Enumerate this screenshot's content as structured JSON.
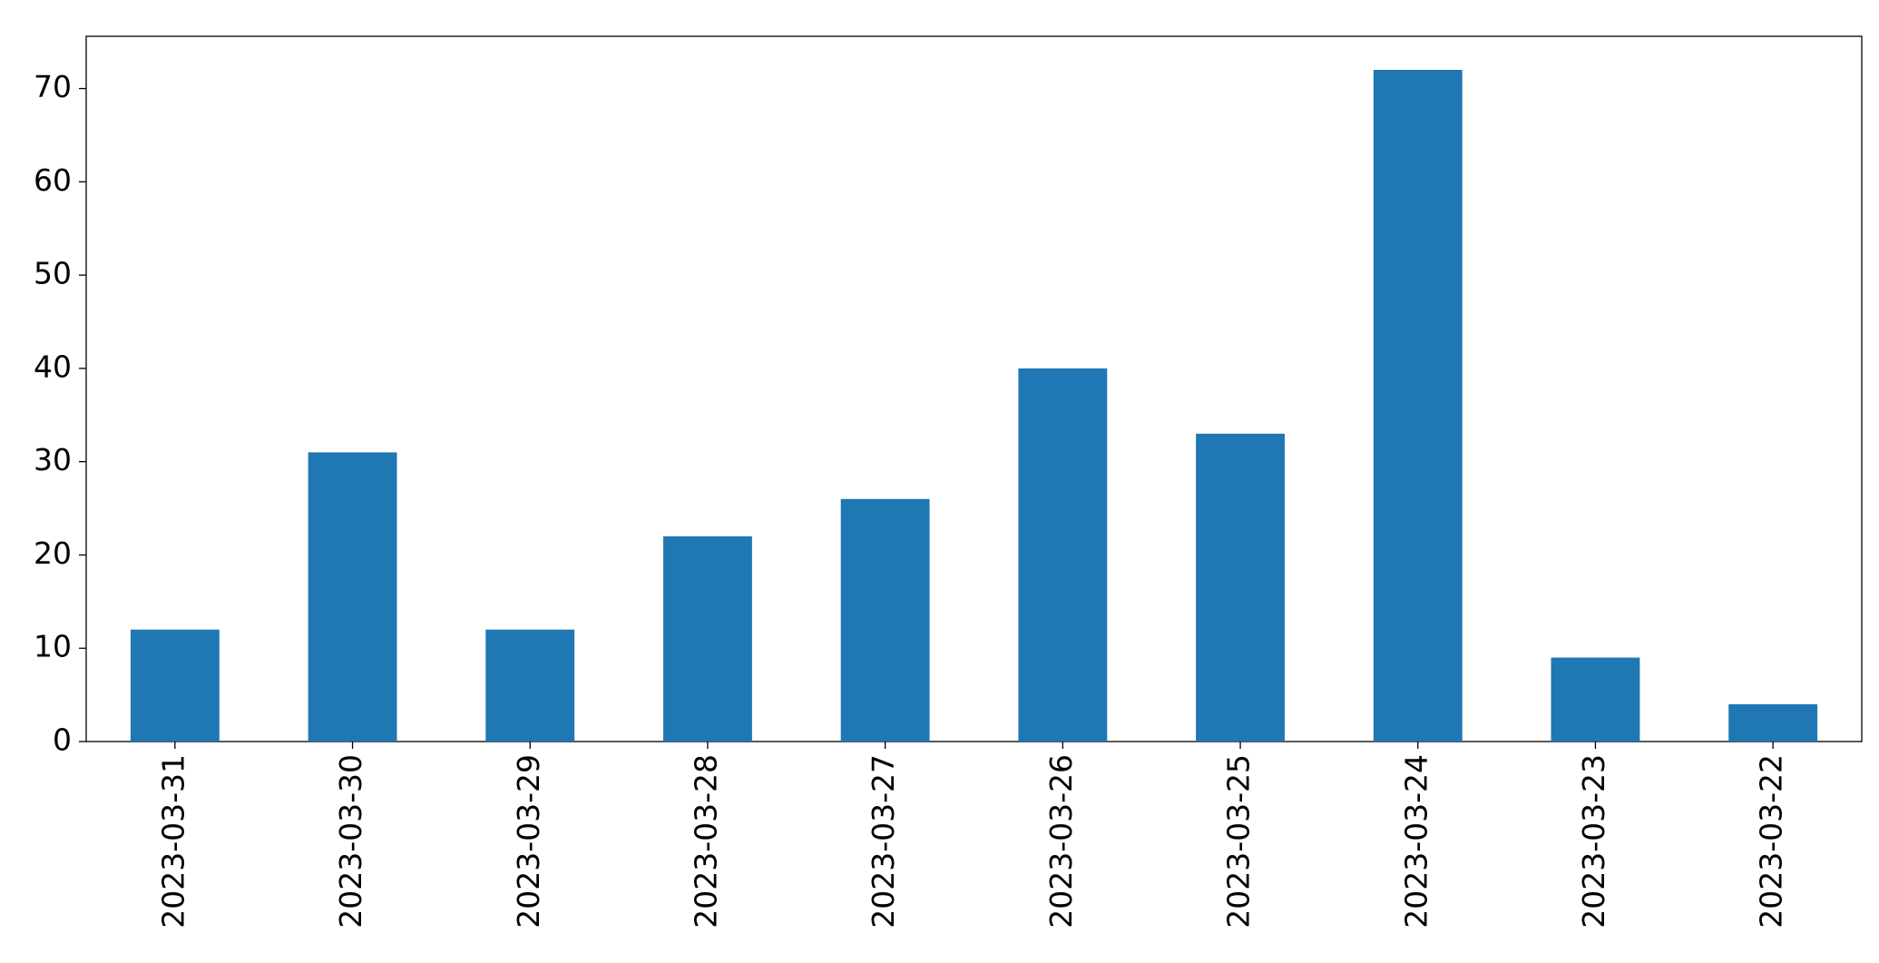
{
  "chart_data": {
    "type": "bar",
    "categories": [
      "2023-03-31",
      "2023-03-30",
      "2023-03-29",
      "2023-03-28",
      "2023-03-27",
      "2023-03-26",
      "2023-03-25",
      "2023-03-24",
      "2023-03-23",
      "2023-03-22"
    ],
    "values": [
      12,
      31,
      12,
      22,
      26,
      40,
      33,
      72,
      9,
      4
    ],
    "color": "#1f77b4",
    "ylim": [
      0,
      75.6
    ],
    "yticks": [
      0,
      10,
      20,
      30,
      40,
      50,
      60,
      70
    ],
    "grid": false
  }
}
